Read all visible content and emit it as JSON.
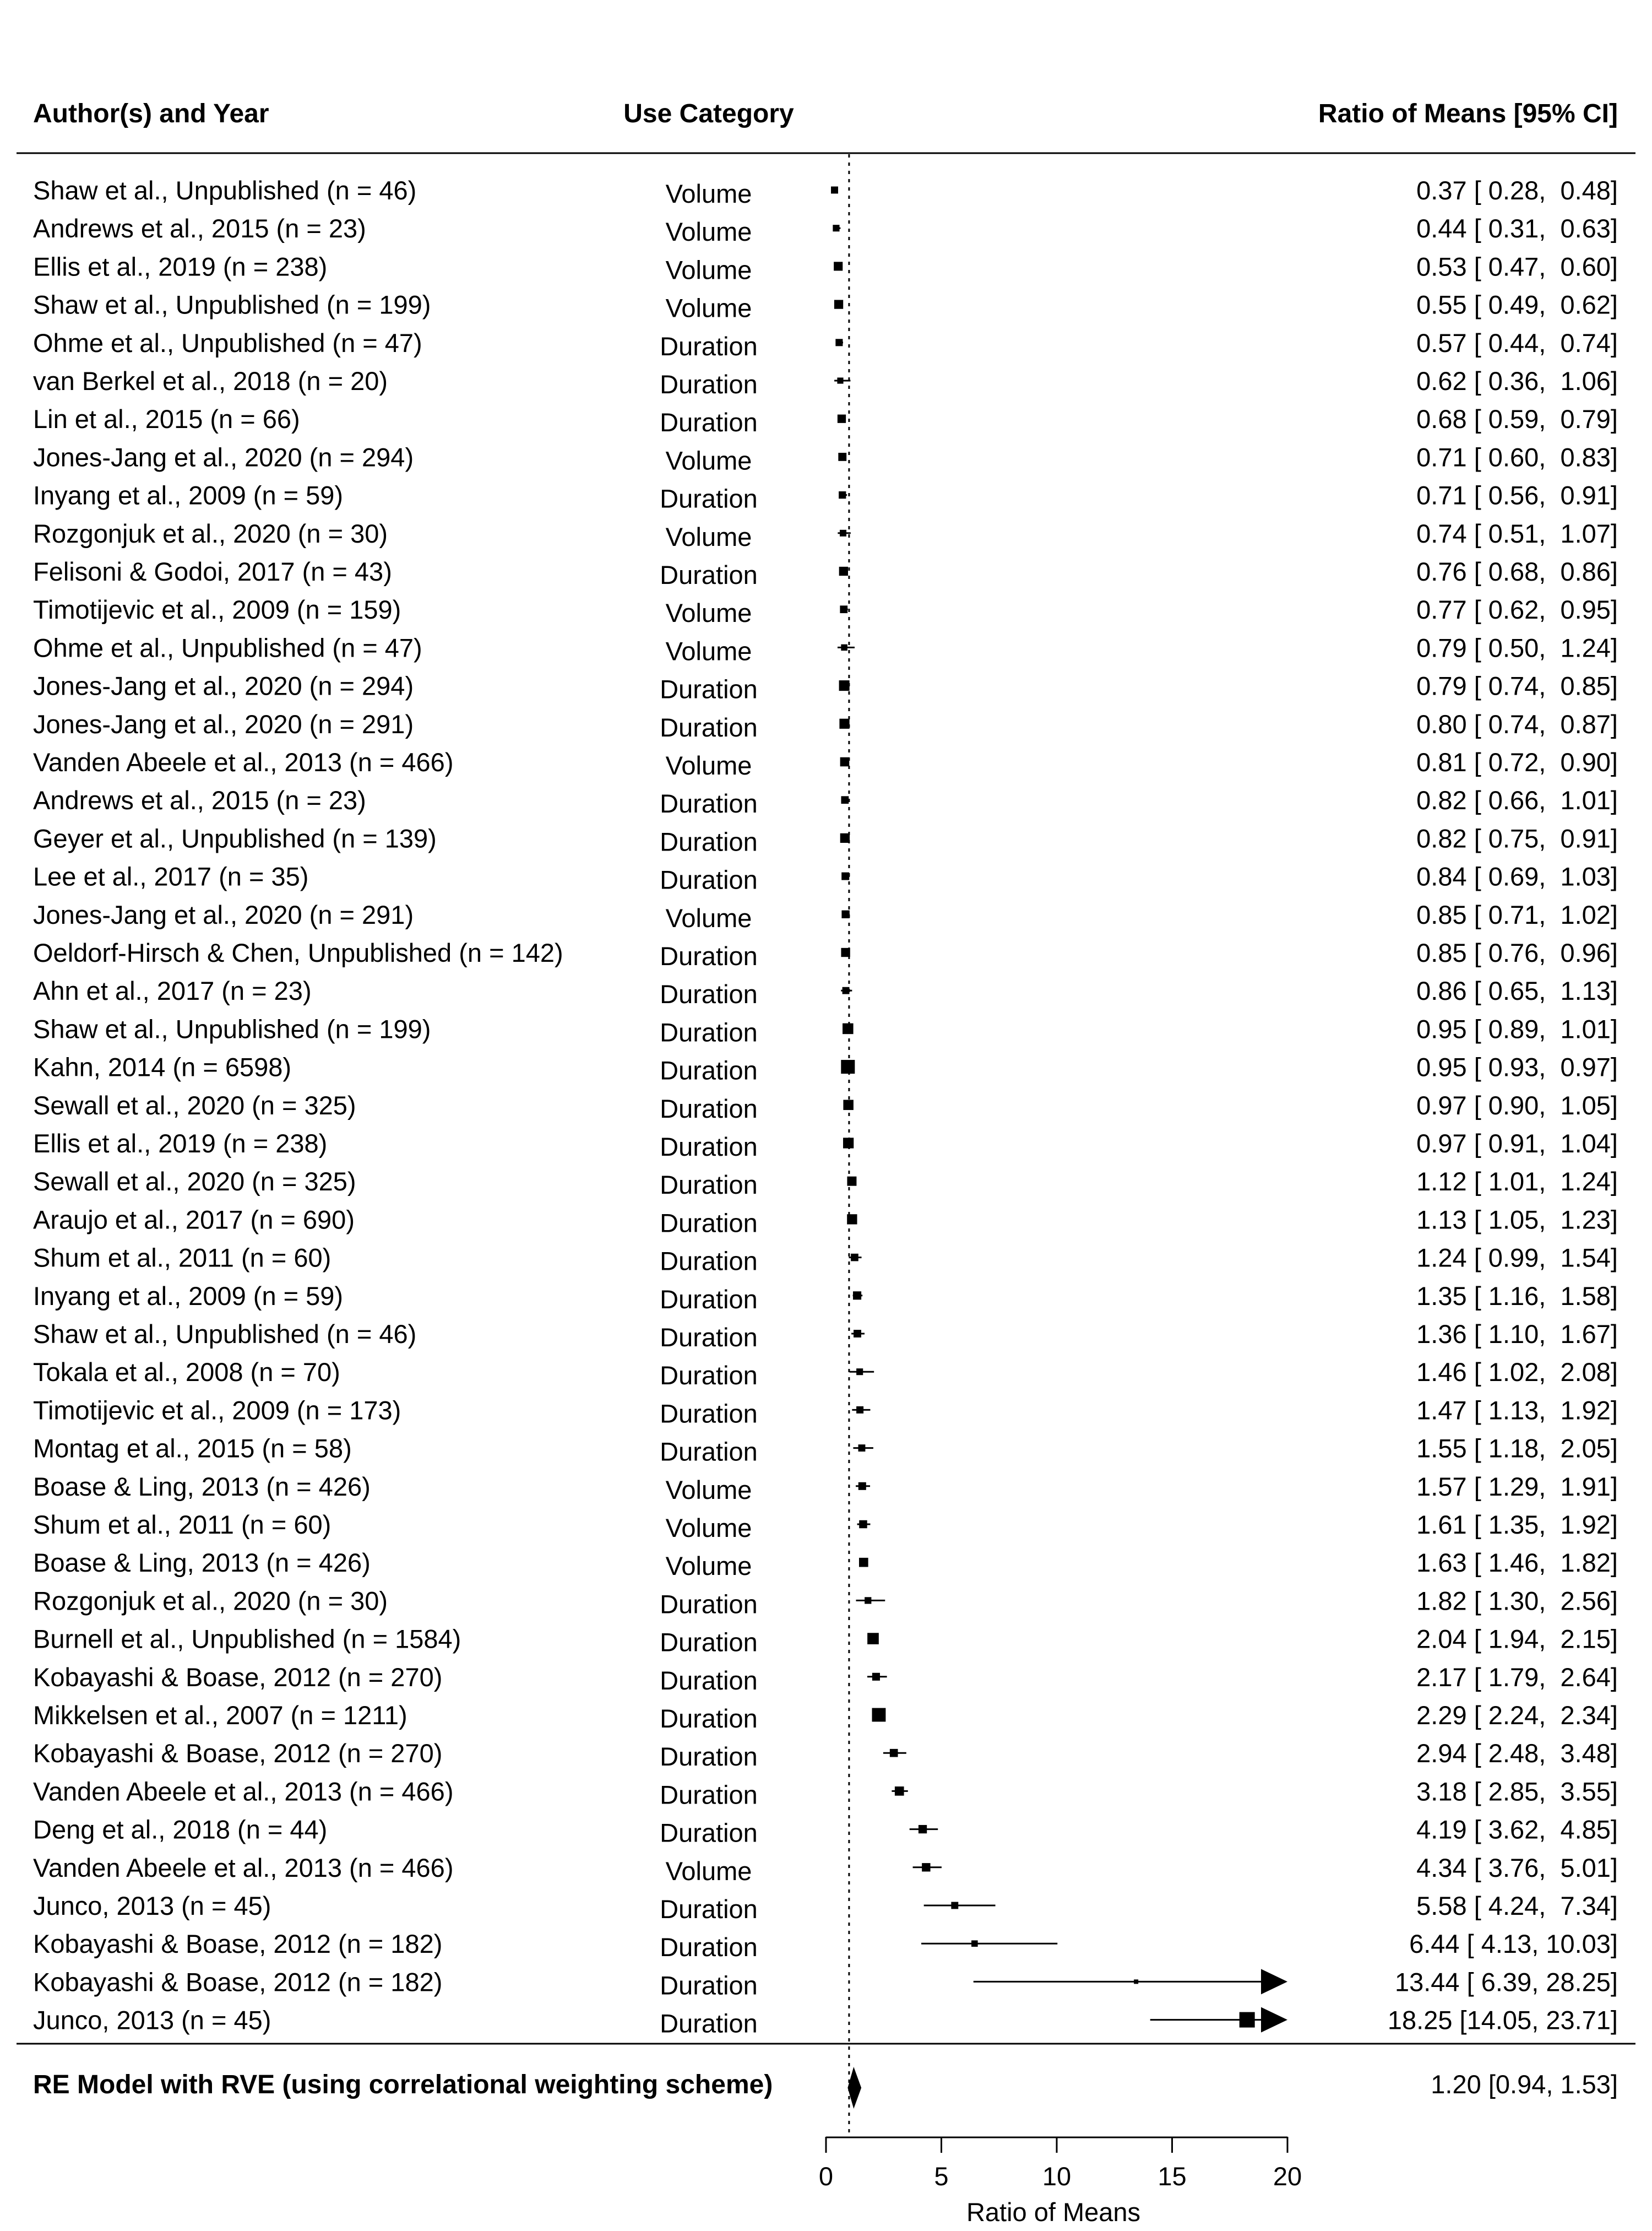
{
  "chart_data": {
    "type": "forest",
    "columns": {
      "study": "Author(s) and Year",
      "category": "Use Category",
      "estimate": "Ratio of Means [95% CI]"
    },
    "xlabel": "Ratio of Means",
    "xlim": [
      0,
      20
    ],
    "xticks": [
      0,
      5,
      10,
      15,
      20
    ],
    "reference_line": 1,
    "studies": [
      {
        "label": "Shaw et al., Unpublished (n = 46)",
        "category": "Volume",
        "estimate": 0.37,
        "lower": 0.28,
        "upper": 0.48,
        "text": "0.37 [ 0.28,  0.48]"
      },
      {
        "label": "Andrews et al., 2015 (n = 23)",
        "category": "Volume",
        "estimate": 0.44,
        "lower": 0.31,
        "upper": 0.63,
        "text": "0.44 [ 0.31,  0.63]"
      },
      {
        "label": "Ellis et al., 2019 (n = 238)",
        "category": "Volume",
        "estimate": 0.53,
        "lower": 0.47,
        "upper": 0.6,
        "text": "0.53 [ 0.47,  0.60]"
      },
      {
        "label": "Shaw et al., Unpublished (n = 199)",
        "category": "Volume",
        "estimate": 0.55,
        "lower": 0.49,
        "upper": 0.62,
        "text": "0.55 [ 0.49,  0.62]"
      },
      {
        "label": "Ohme et al., Unpublished (n = 47)",
        "category": "Duration",
        "estimate": 0.57,
        "lower": 0.44,
        "upper": 0.74,
        "text": "0.57 [ 0.44,  0.74]"
      },
      {
        "label": "van Berkel et al., 2018 (n = 20)",
        "category": "Duration",
        "estimate": 0.62,
        "lower": 0.36,
        "upper": 1.06,
        "text": "0.62 [ 0.36,  1.06]"
      },
      {
        "label": "Lin et al., 2015 (n = 66)",
        "category": "Duration",
        "estimate": 0.68,
        "lower": 0.59,
        "upper": 0.79,
        "text": "0.68 [ 0.59,  0.79]"
      },
      {
        "label": "Jones-Jang et al., 2020 (n = 294)",
        "category": "Volume",
        "estimate": 0.71,
        "lower": 0.6,
        "upper": 0.83,
        "text": "0.71 [ 0.60,  0.83]"
      },
      {
        "label": "Inyang et al., 2009 (n = 59)",
        "category": "Duration",
        "estimate": 0.71,
        "lower": 0.56,
        "upper": 0.91,
        "text": "0.71 [ 0.56,  0.91]"
      },
      {
        "label": "Rozgonjuk et al., 2020 (n = 30)",
        "category": "Volume",
        "estimate": 0.74,
        "lower": 0.51,
        "upper": 1.07,
        "text": "0.74 [ 0.51,  1.07]"
      },
      {
        "label": "Felisoni & Godoi, 2017 (n = 43)",
        "category": "Duration",
        "estimate": 0.76,
        "lower": 0.68,
        "upper": 0.86,
        "text": "0.76 [ 0.68,  0.86]"
      },
      {
        "label": "Timotijevic et al., 2009 (n = 159)",
        "category": "Volume",
        "estimate": 0.77,
        "lower": 0.62,
        "upper": 0.95,
        "text": "0.77 [ 0.62,  0.95]"
      },
      {
        "label": "Ohme et al., Unpublished (n = 47)",
        "category": "Volume",
        "estimate": 0.79,
        "lower": 0.5,
        "upper": 1.24,
        "text": "0.79 [ 0.50,  1.24]"
      },
      {
        "label": "Jones-Jang et al., 2020 (n = 294)",
        "category": "Duration",
        "estimate": 0.79,
        "lower": 0.74,
        "upper": 0.85,
        "text": "0.79 [ 0.74,  0.85]"
      },
      {
        "label": "Jones-Jang et al., 2020 (n = 291)",
        "category": "Duration",
        "estimate": 0.8,
        "lower": 0.74,
        "upper": 0.87,
        "text": "0.80 [ 0.74,  0.87]"
      },
      {
        "label": "Vanden Abeele et al., 2013 (n = 466)",
        "category": "Volume",
        "estimate": 0.81,
        "lower": 0.72,
        "upper": 0.9,
        "text": "0.81 [ 0.72,  0.90]"
      },
      {
        "label": "Andrews et al., 2015 (n = 23)",
        "category": "Duration",
        "estimate": 0.82,
        "lower": 0.66,
        "upper": 1.01,
        "text": "0.82 [ 0.66,  1.01]"
      },
      {
        "label": "Geyer et al., Unpublished (n = 139)",
        "category": "Duration",
        "estimate": 0.82,
        "lower": 0.75,
        "upper": 0.91,
        "text": "0.82 [ 0.75,  0.91]"
      },
      {
        "label": "Lee et al., 2017 (n = 35)",
        "category": "Duration",
        "estimate": 0.84,
        "lower": 0.69,
        "upper": 1.03,
        "text": "0.84 [ 0.69,  1.03]"
      },
      {
        "label": "Jones-Jang et al., 2020 (n = 291)",
        "category": "Volume",
        "estimate": 0.85,
        "lower": 0.71,
        "upper": 1.02,
        "text": "0.85 [ 0.71,  1.02]"
      },
      {
        "label": "Oeldorf-Hirsch & Chen, Unpublished (n = 142)",
        "category": "Duration",
        "estimate": 0.85,
        "lower": 0.76,
        "upper": 0.96,
        "text": "0.85 [ 0.76,  0.96]"
      },
      {
        "label": "Ahn et al., 2017 (n = 23)",
        "category": "Duration",
        "estimate": 0.86,
        "lower": 0.65,
        "upper": 1.13,
        "text": "0.86 [ 0.65,  1.13]"
      },
      {
        "label": "Shaw et al., Unpublished (n = 199)",
        "category": "Duration",
        "estimate": 0.95,
        "lower": 0.89,
        "upper": 1.01,
        "text": "0.95 [ 0.89,  1.01]"
      },
      {
        "label": "Kahn, 2014 (n = 6598)",
        "category": "Duration",
        "estimate": 0.95,
        "lower": 0.93,
        "upper": 0.97,
        "text": "0.95 [ 0.93,  0.97]"
      },
      {
        "label": "Sewall et al., 2020 (n = 325)",
        "category": "Duration",
        "estimate": 0.97,
        "lower": 0.9,
        "upper": 1.05,
        "text": "0.97 [ 0.90,  1.05]"
      },
      {
        "label": "Ellis et al., 2019 (n = 238)",
        "category": "Duration",
        "estimate": 0.97,
        "lower": 0.91,
        "upper": 1.04,
        "text": "0.97 [ 0.91,  1.04]"
      },
      {
        "label": "Sewall et al., 2020 (n = 325)",
        "category": "Duration",
        "estimate": 1.12,
        "lower": 1.01,
        "upper": 1.24,
        "text": "1.12 [ 1.01,  1.24]"
      },
      {
        "label": "Araujo et al., 2017 (n = 690)",
        "category": "Duration",
        "estimate": 1.13,
        "lower": 1.05,
        "upper": 1.23,
        "text": "1.13 [ 1.05,  1.23]"
      },
      {
        "label": "Shum et al., 2011 (n = 60)",
        "category": "Duration",
        "estimate": 1.24,
        "lower": 0.99,
        "upper": 1.54,
        "text": "1.24 [ 0.99,  1.54]"
      },
      {
        "label": "Inyang et al., 2009 (n = 59)",
        "category": "Duration",
        "estimate": 1.35,
        "lower": 1.16,
        "upper": 1.58,
        "text": "1.35 [ 1.16,  1.58]"
      },
      {
        "label": "Shaw et al., Unpublished (n = 46)",
        "category": "Duration",
        "estimate": 1.36,
        "lower": 1.1,
        "upper": 1.67,
        "text": "1.36 [ 1.10,  1.67]"
      },
      {
        "label": "Tokala et al., 2008 (n = 70)",
        "category": "Duration",
        "estimate": 1.46,
        "lower": 1.02,
        "upper": 2.08,
        "text": "1.46 [ 1.02,  2.08]"
      },
      {
        "label": "Timotijevic et al., 2009 (n = 173)",
        "category": "Duration",
        "estimate": 1.47,
        "lower": 1.13,
        "upper": 1.92,
        "text": "1.47 [ 1.13,  1.92]"
      },
      {
        "label": "Montag et al., 2015 (n = 58)",
        "category": "Duration",
        "estimate": 1.55,
        "lower": 1.18,
        "upper": 2.05,
        "text": "1.55 [ 1.18,  2.05]"
      },
      {
        "label": "Boase & Ling, 2013 (n = 426)",
        "category": "Volume",
        "estimate": 1.57,
        "lower": 1.29,
        "upper": 1.91,
        "text": "1.57 [ 1.29,  1.91]"
      },
      {
        "label": "Shum et al., 2011 (n = 60)",
        "category": "Volume",
        "estimate": 1.61,
        "lower": 1.35,
        "upper": 1.92,
        "text": "1.61 [ 1.35,  1.92]"
      },
      {
        "label": "Boase & Ling, 2013 (n = 426)",
        "category": "Volume",
        "estimate": 1.63,
        "lower": 1.46,
        "upper": 1.82,
        "text": "1.63 [ 1.46,  1.82]"
      },
      {
        "label": "Rozgonjuk et al., 2020 (n = 30)",
        "category": "Duration",
        "estimate": 1.82,
        "lower": 1.3,
        "upper": 2.56,
        "text": "1.82 [ 1.30,  2.56]"
      },
      {
        "label": "Burnell et al., Unpublished (n = 1584)",
        "category": "Duration",
        "estimate": 2.04,
        "lower": 1.94,
        "upper": 2.15,
        "text": "2.04 [ 1.94,  2.15]"
      },
      {
        "label": "Kobayashi & Boase, 2012 (n = 270)",
        "category": "Duration",
        "estimate": 2.17,
        "lower": 1.79,
        "upper": 2.64,
        "text": "2.17 [ 1.79,  2.64]"
      },
      {
        "label": "Mikkelsen et al., 2007 (n = 1211)",
        "category": "Duration",
        "estimate": 2.29,
        "lower": 2.24,
        "upper": 2.34,
        "text": "2.29 [ 2.24,  2.34]"
      },
      {
        "label": "Kobayashi & Boase, 2012 (n = 270)",
        "category": "Duration",
        "estimate": 2.94,
        "lower": 2.48,
        "upper": 3.48,
        "text": "2.94 [ 2.48,  3.48]"
      },
      {
        "label": "Vanden Abeele et al., 2013 (n = 466)",
        "category": "Duration",
        "estimate": 3.18,
        "lower": 2.85,
        "upper": 3.55,
        "text": "3.18 [ 2.85,  3.55]"
      },
      {
        "label": "Deng et al., 2018 (n = 44)",
        "category": "Duration",
        "estimate": 4.19,
        "lower": 3.62,
        "upper": 4.85,
        "text": "4.19 [ 3.62,  4.85]"
      },
      {
        "label": "Vanden Abeele et al., 2013 (n = 466)",
        "category": "Volume",
        "estimate": 4.34,
        "lower": 3.76,
        "upper": 5.01,
        "text": "4.34 [ 3.76,  5.01]"
      },
      {
        "label": "Junco, 2013 (n = 45)",
        "category": "Duration",
        "estimate": 5.58,
        "lower": 4.24,
        "upper": 7.34,
        "text": "5.58 [ 4.24,  7.34]"
      },
      {
        "label": "Kobayashi & Boase, 2012 (n = 182)",
        "category": "Duration",
        "estimate": 6.44,
        "lower": 4.13,
        "upper": 10.03,
        "text": "6.44 [ 4.13, 10.03]"
      },
      {
        "label": "Kobayashi & Boase, 2012 (n = 182)",
        "category": "Duration",
        "estimate": 13.44,
        "lower": 6.39,
        "upper": 28.25,
        "text": "13.44 [ 6.39, 28.25]"
      },
      {
        "label": "Junco, 2013 (n = 45)",
        "category": "Duration",
        "estimate": 18.25,
        "lower": 14.05,
        "upper": 23.71,
        "text": "18.25 [14.05, 23.71]"
      }
    ],
    "summary": {
      "label": "RE Model with RVE (using correlational weighting scheme)",
      "estimate": 1.2,
      "lower": 0.94,
      "upper": 1.53,
      "text": "1.20 [0.94, 1.53]"
    }
  }
}
